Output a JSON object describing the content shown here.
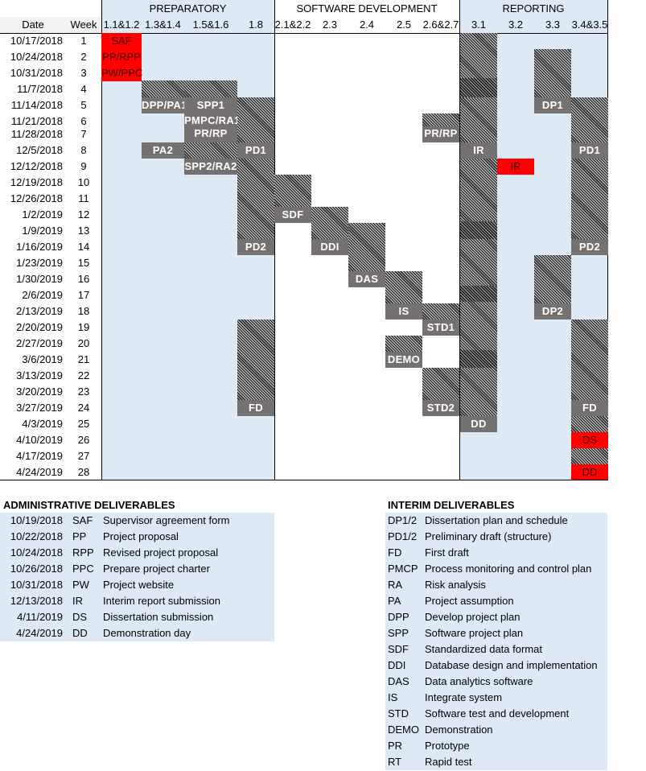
{
  "header": {
    "phases": [
      "PREPARATORY",
      "SOFTWARE DEVELOPMENT",
      "REPORTING"
    ],
    "date_label": "Date",
    "week_label": "Week",
    "task_columns": [
      "1.1&1.2",
      "1.3&1.4",
      "1.5&1.6",
      "1.8",
      "2.1&2.2",
      "2.3",
      "2.4",
      "2.5",
      "2.6&2.7",
      "3.1",
      "3.2",
      "3.3",
      "3.4&3.5"
    ]
  },
  "rows": [
    {
      "date": "10/17/2018",
      "week": "1"
    },
    {
      "date": "10/24/2018",
      "week": "2"
    },
    {
      "date": "10/31/2018",
      "week": "3"
    },
    {
      "date": "11/7/2018",
      "week": "4"
    },
    {
      "date": "11/14/2018",
      "week": "5"
    },
    {
      "date": "11/21/2018",
      "week": "6"
    },
    {
      "date": "11/28/2018",
      "week": "7"
    },
    {
      "date": "12/5/2018",
      "week": "8"
    },
    {
      "date": "12/12/2018",
      "week": "9"
    },
    {
      "date": "12/19/2018",
      "week": "10"
    },
    {
      "date": "12/26/2018",
      "week": "11"
    },
    {
      "date": "1/2/2019",
      "week": "12"
    },
    {
      "date": "1/9/2019",
      "week": "13"
    },
    {
      "date": "1/16/2019",
      "week": "14"
    },
    {
      "date": "1/23/2019",
      "week": "15"
    },
    {
      "date": "1/30/2019",
      "week": "16"
    },
    {
      "date": "2/6/2019",
      "week": "17"
    },
    {
      "date": "2/13/2019",
      "week": "18"
    },
    {
      "date": "2/20/2019",
      "week": "19"
    },
    {
      "date": "2/27/2019",
      "week": "20"
    },
    {
      "date": "3/6/2019",
      "week": "21"
    },
    {
      "date": "3/13/2019",
      "week": "22"
    },
    {
      "date": "3/20/2019",
      "week": "23"
    },
    {
      "date": "3/27/2019",
      "week": "24"
    },
    {
      "date": "4/3/2019",
      "week": "25"
    },
    {
      "date": "4/10/2019",
      "week": "26"
    },
    {
      "date": "4/17/2019",
      "week": "27"
    },
    {
      "date": "4/24/2019",
      "week": "28"
    }
  ],
  "labels": {
    "saf": "SAF",
    "pp_rpp": "PP/RPP",
    "pw_ppc": "PW/PPC",
    "dpp_pa1": "DPP/PA1",
    "spp1": "SPP1",
    "pmpc_ra1": "PMPC/RA1",
    "pr_rp_prep": "PR/RP",
    "pa2": "PA2",
    "spp2_ra2": "SPP2/RA2",
    "pd1_prep": "PD1",
    "pd2_prep": "PD2",
    "fd_prep": "FD",
    "sdf": "SDF",
    "ddi": "DDI",
    "das": "DAS",
    "is": "IS",
    "demo": "DEMO",
    "pr_rp_dev": "PR/RP",
    "std1": "STD1",
    "std2": "STD2",
    "ir_31": "IR",
    "dd_31": "DD",
    "ir_32": "IR",
    "dp1": "DP1",
    "dp2": "DP2",
    "pd1_rep": "PD1",
    "pd2_rep": "PD2",
    "fd_rep": "FD",
    "ds": "DS",
    "dd_rep": "DD"
  },
  "admin_deliverables": {
    "title": "ADMINISTRATIVE DELIVERABLES",
    "items": [
      {
        "date": "10/19/2018",
        "code": "SAF",
        "desc": "Supervisor agreement form"
      },
      {
        "date": "10/22/2018",
        "code": "PP",
        "desc": "Project proposal"
      },
      {
        "date": "10/24/2018",
        "code": "RPP",
        "desc": "Revised project proposal"
      },
      {
        "date": "10/26/2018",
        "code": "PPC",
        "desc": "Prepare project charter"
      },
      {
        "date": "10/31/2018",
        "code": "PW",
        "desc": "Project website"
      },
      {
        "date": "12/13/2018",
        "code": "IR",
        "desc": "Interim report submission"
      },
      {
        "date": "4/11/2019",
        "code": "DS",
        "desc": "Dissertation submission"
      },
      {
        "date": "4/24/2019",
        "code": "DD",
        "desc": "Demonstration day"
      }
    ]
  },
  "interim_deliverables": {
    "title": "INTERIM DELIVERABLES",
    "items": [
      {
        "code": "DP1/2",
        "desc": "Dissertation plan and schedule"
      },
      {
        "code": "PD1/2",
        "desc": "Preliminary draft (structure)"
      },
      {
        "code": "FD",
        "desc": "First draft"
      },
      {
        "code": "PMCP",
        "desc": "Process monitoring and control plan"
      },
      {
        "code": "RA",
        "desc": "Risk analysis"
      },
      {
        "code": "PA",
        "desc": "Project assumption"
      },
      {
        "code": "DPP",
        "desc": "Develop project plan"
      },
      {
        "code": "SPP",
        "desc": "Software project plan"
      },
      {
        "code": "SDF",
        "desc": "Standardized data format"
      },
      {
        "code": "DDI",
        "desc": "Database design and implementation"
      },
      {
        "code": "DAS",
        "desc": "Data analytics software"
      },
      {
        "code": "IS",
        "desc": "Integrate system"
      },
      {
        "code": "STD",
        "desc": "Software test and development"
      },
      {
        "code": "DEMO",
        "desc": "Demonstration"
      },
      {
        "code": "PR",
        "desc": "Prototype"
      },
      {
        "code": "RT",
        "desc": "Rapid test"
      }
    ]
  },
  "colors": {
    "phase_fill": "#dde9f5",
    "milestone_gray": "#767171",
    "deadline_red": "#ff0000",
    "grid_line": "#000000"
  }
}
